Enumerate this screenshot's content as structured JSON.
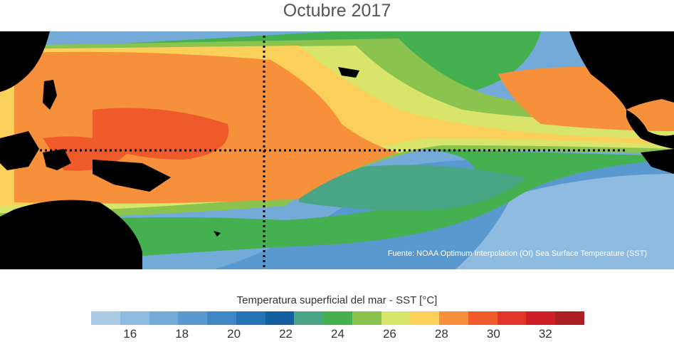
{
  "title": "Octubre 2017",
  "source": "Fuente: NOAA Optimum Interpolation (OI) Sea Surface Temperature (SST)",
  "colorbar": {
    "title": "Temperatura superficial del mar - SST  [°C]",
    "ticks": [
      "16",
      "18",
      "20",
      "22",
      "24",
      "26",
      "28",
      "30",
      "32"
    ],
    "colors": [
      "#a9cbe6",
      "#8fbbe0",
      "#74aad8",
      "#5a99cf",
      "#3f87c5",
      "#2474b7",
      "#145f9e",
      "#49a585",
      "#45b050",
      "#8bc34f",
      "#d9e46b",
      "#fbd05a",
      "#f7903a",
      "#ee5a2a",
      "#e2352a",
      "#cc1f27",
      "#ad1e23"
    ]
  },
  "chart_data": {
    "type": "heatmap",
    "title": "Octubre 2017",
    "colorbar_label": "Temperatura superficial del mar - SST  [°C]",
    "colorbar_ticks": [
      16,
      18,
      20,
      22,
      24,
      26,
      28,
      30,
      32
    ],
    "colorbar_range": [
      15,
      33
    ],
    "bin_width": 1,
    "annotations": [
      "Fuente: NOAA Optimum Interpolation (OI) Sea Surface Temperature (SST)"
    ]
  }
}
